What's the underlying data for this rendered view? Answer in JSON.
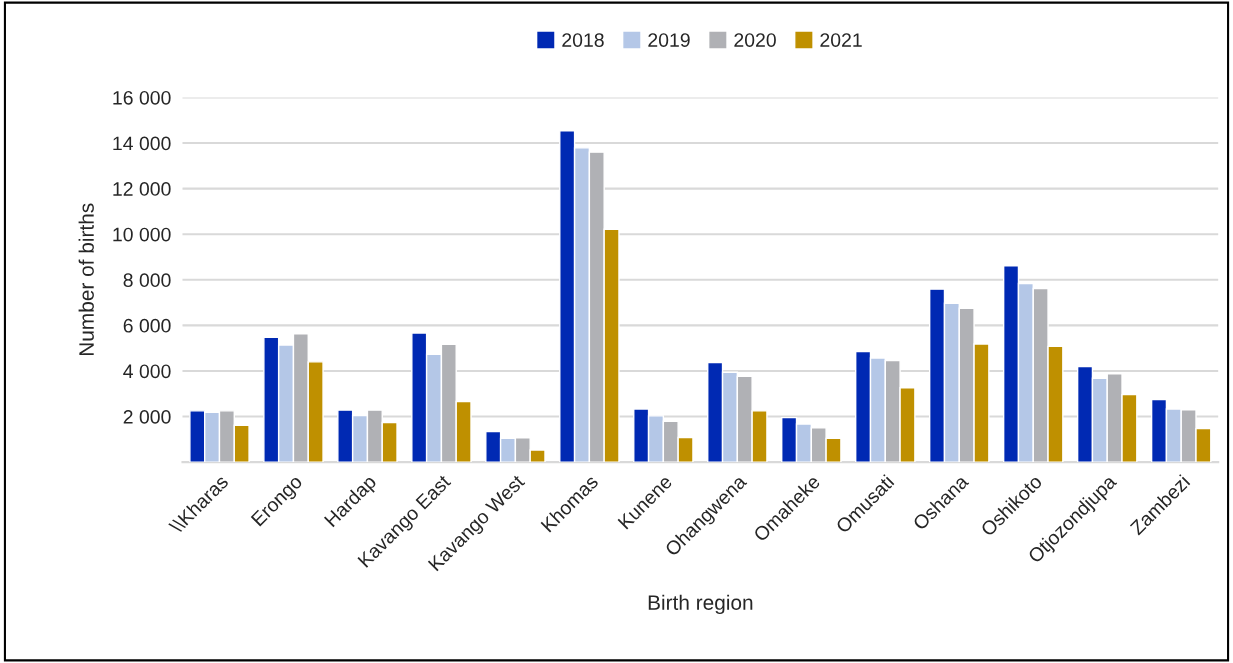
{
  "chart_data": {
    "type": "bar",
    "xlabel": "Birth region",
    "ylabel": "Number of births",
    "categories": [
      "\\\\Kharas",
      "Erongo",
      "Hardap",
      "Kavango East",
      "Kavango West",
      "Khomas",
      "Kunene",
      "Ohangwena",
      "Omaheke",
      "Omusati",
      "Oshana",
      "Oshikoto",
      "Otjozondjupa",
      "Zambezi"
    ],
    "series": [
      {
        "name": "2018",
        "color": "#0029b3",
        "values": [
          2250,
          5480,
          2280,
          5660,
          1340,
          14540,
          2330,
          4370,
          1950,
          4850,
          7590,
          8610,
          4190,
          2750
        ]
      },
      {
        "name": "2019",
        "color": "#b4c7e7",
        "values": [
          2190,
          5140,
          2040,
          4730,
          1040,
          13790,
          2030,
          3940,
          1670,
          4570,
          6970,
          7840,
          3680,
          2330
        ]
      },
      {
        "name": "2020",
        "color": "#b0b1b5",
        "values": [
          2250,
          5630,
          2280,
          5170,
          1070,
          13600,
          1790,
          3760,
          1500,
          4460,
          6750,
          7620,
          3880,
          2300
        ]
      },
      {
        "name": "2021",
        "color": "#bf9000",
        "values": [
          1620,
          4400,
          1740,
          2660,
          530,
          10220,
          1080,
          2250,
          1040,
          3260,
          5180,
          5080,
          2960,
          1470
        ]
      }
    ],
    "ylim": [
      0,
      16000
    ],
    "yticks": [
      {
        "value": 2000,
        "label": "2 000"
      },
      {
        "value": 4000,
        "label": "4 000"
      },
      {
        "value": 6000,
        "label": "6 000"
      },
      {
        "value": 8000,
        "label": "8 000"
      },
      {
        "value": 10000,
        "label": "10 000"
      },
      {
        "value": 12000,
        "label": "12 000"
      },
      {
        "value": 14000,
        "label": "14 000"
      },
      {
        "value": 16000,
        "label": "16 000"
      }
    ],
    "grid": "y",
    "legend": "top"
  }
}
